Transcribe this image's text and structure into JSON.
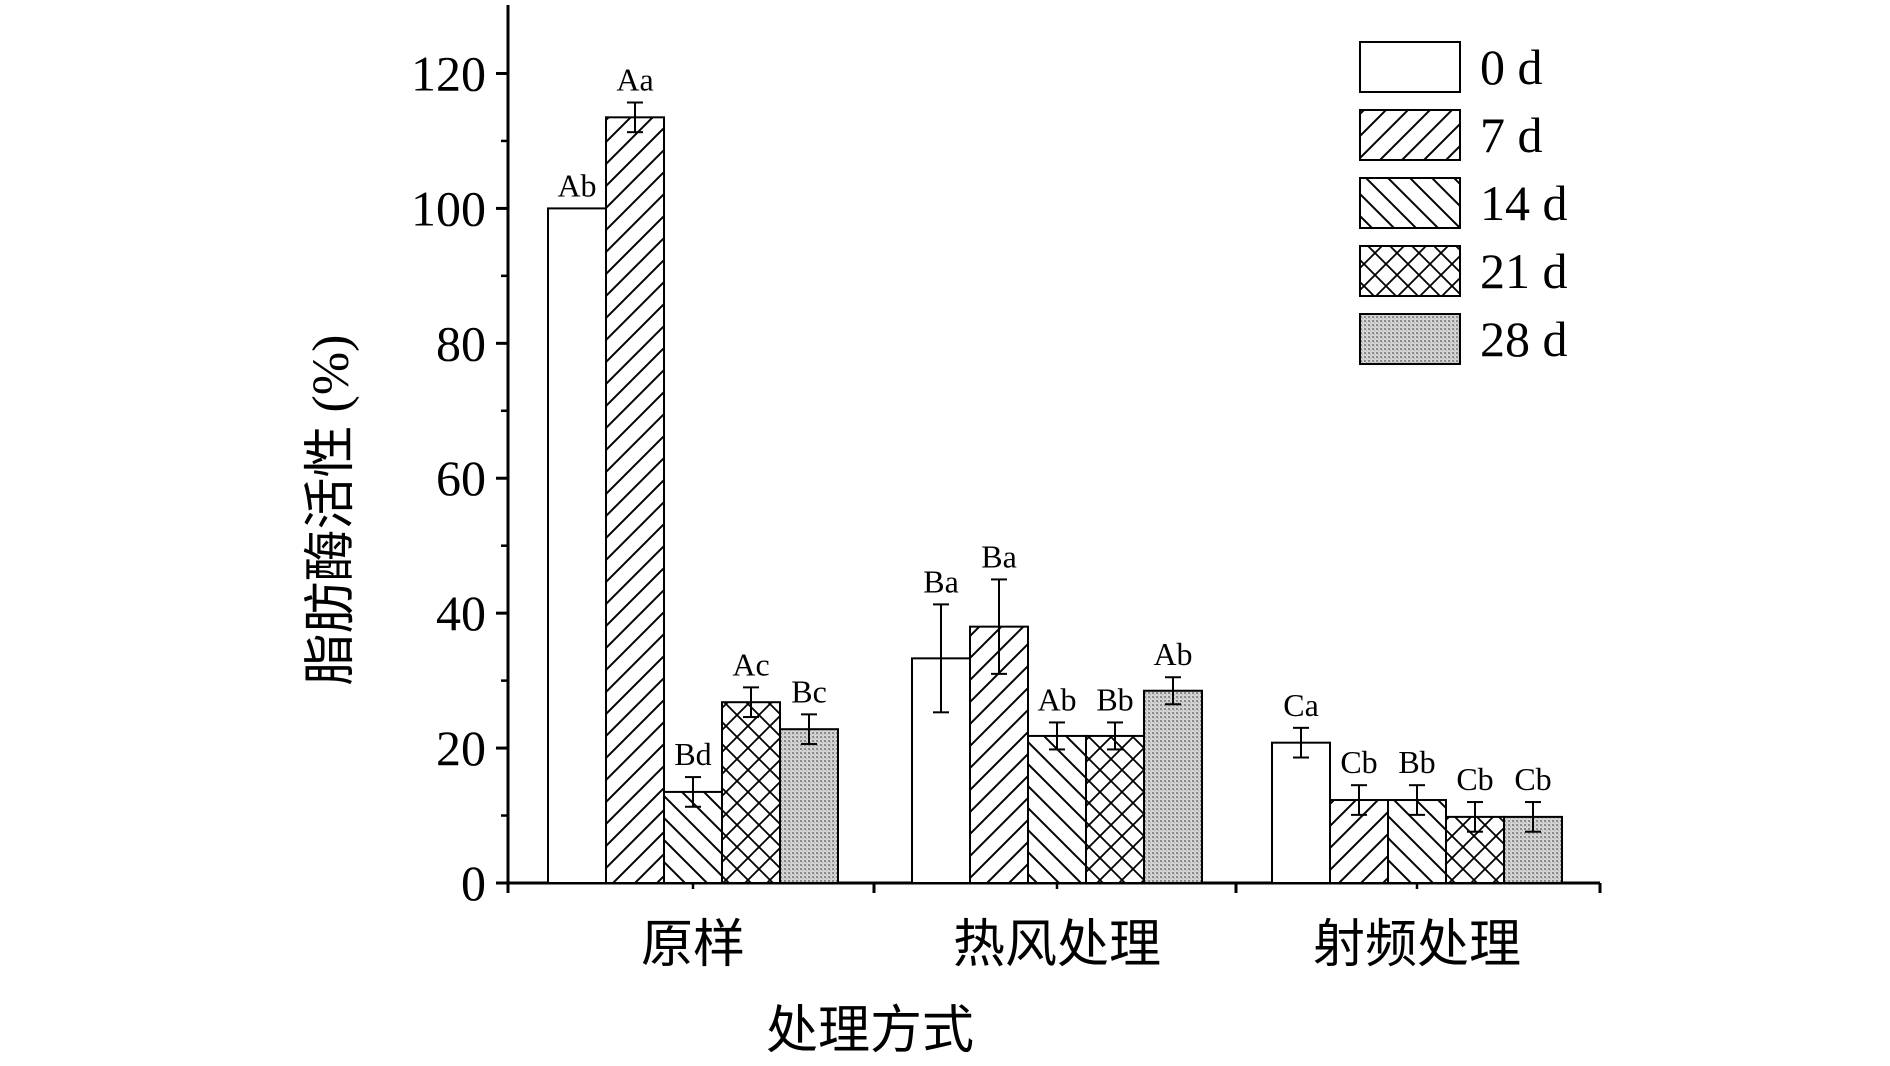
{
  "chart_data": {
    "type": "bar",
    "title": "",
    "xlabel": "处理方式",
    "ylabel": "脂肪酶活性 (%)",
    "ylim": [
      0,
      130
    ],
    "yticks": [
      0,
      20,
      40,
      60,
      80,
      100,
      120
    ],
    "grid": false,
    "legend_position": "top-right",
    "categories": [
      "原样",
      "热风处理",
      "射频处理"
    ],
    "series": [
      {
        "name": "0 d",
        "pattern": "none",
        "values": [
          100,
          33.3,
          20.8
        ],
        "errors": [
          0,
          8,
          2.2
        ],
        "labels": [
          "Ab",
          "Ba",
          "Ca"
        ]
      },
      {
        "name": "7 d",
        "pattern": "diagonal-forward",
        "values": [
          113.5,
          38,
          12.3
        ],
        "errors": [
          2.2,
          7,
          2.2
        ],
        "labels": [
          "Aa",
          "Ba",
          "Cb"
        ]
      },
      {
        "name": "14 d",
        "pattern": "diagonal-backward",
        "values": [
          13.5,
          21.8,
          12.3
        ],
        "errors": [
          2.2,
          2,
          2.2
        ],
        "labels": [
          "Bd",
          "Ab",
          "Bb"
        ]
      },
      {
        "name": "21 d",
        "pattern": "crosshatch",
        "values": [
          26.8,
          21.8,
          9.8
        ],
        "errors": [
          2.2,
          2,
          2.2
        ],
        "labels": [
          "Ac",
          "Bb",
          "Cb"
        ]
      },
      {
        "name": "28 d",
        "pattern": "dots",
        "values": [
          22.8,
          28.5,
          9.8
        ],
        "errors": [
          2.2,
          2,
          2.2
        ],
        "labels": [
          "Bc",
          "Ab",
          "Cb"
        ]
      }
    ]
  }
}
